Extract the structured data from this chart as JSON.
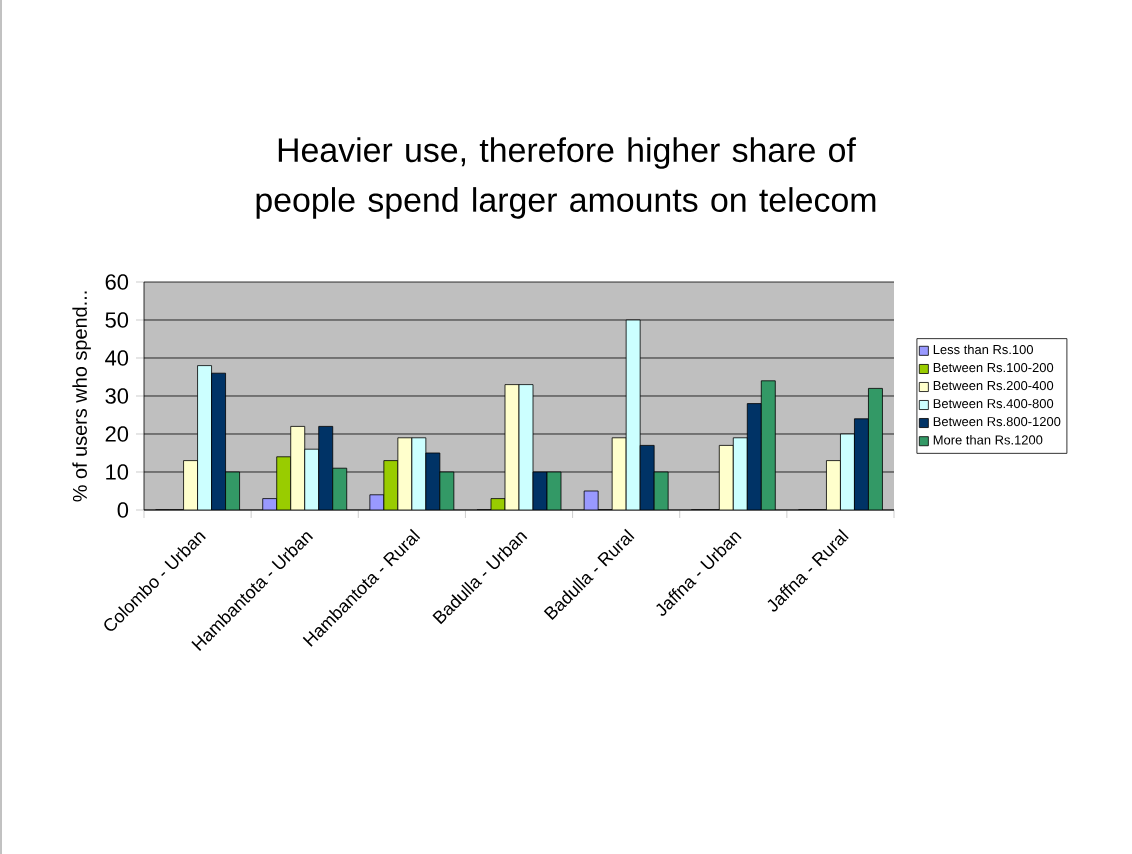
{
  "chart_data": {
    "type": "bar",
    "title": "Heavier use, therefore higher share of people spend larger amounts on telecom",
    "ylabel": "% of users who spend...",
    "categories": [
      "Colombo - Urban",
      "Hambantota - Urban",
      "Hambantota - Rural",
      "Badulla - Urban",
      "Badulla - Rural",
      "Jaffna - Urban",
      "Jaffna - Rural"
    ],
    "series": [
      {
        "name": "Less than Rs.100",
        "color": "#9999ff",
        "values": [
          0,
          3,
          4,
          0,
          5,
          0,
          0
        ]
      },
      {
        "name": "Between Rs.100-200",
        "color": "#99cc00",
        "values": [
          0,
          14,
          13,
          3,
          0,
          0,
          0
        ]
      },
      {
        "name": "Between Rs.200-400",
        "color": "#ffffcc",
        "values": [
          13,
          22,
          19,
          33,
          19,
          17,
          13
        ]
      },
      {
        "name": "Between Rs.400-800",
        "color": "#ccffff",
        "values": [
          38,
          16,
          19,
          33,
          50,
          19,
          20
        ]
      },
      {
        "name": "Between Rs.800-1200",
        "color": "#003366",
        "values": [
          36,
          22,
          15,
          10,
          17,
          28,
          24
        ]
      },
      {
        "name": "More than Rs.1200",
        "color": "#339966",
        "values": [
          10,
          11,
          10,
          10,
          10,
          34,
          32
        ]
      }
    ],
    "ylim": [
      0,
      60
    ],
    "yticks": [
      0,
      10,
      20,
      30,
      40,
      50,
      60
    ],
    "grid": "y",
    "legend": "right"
  }
}
